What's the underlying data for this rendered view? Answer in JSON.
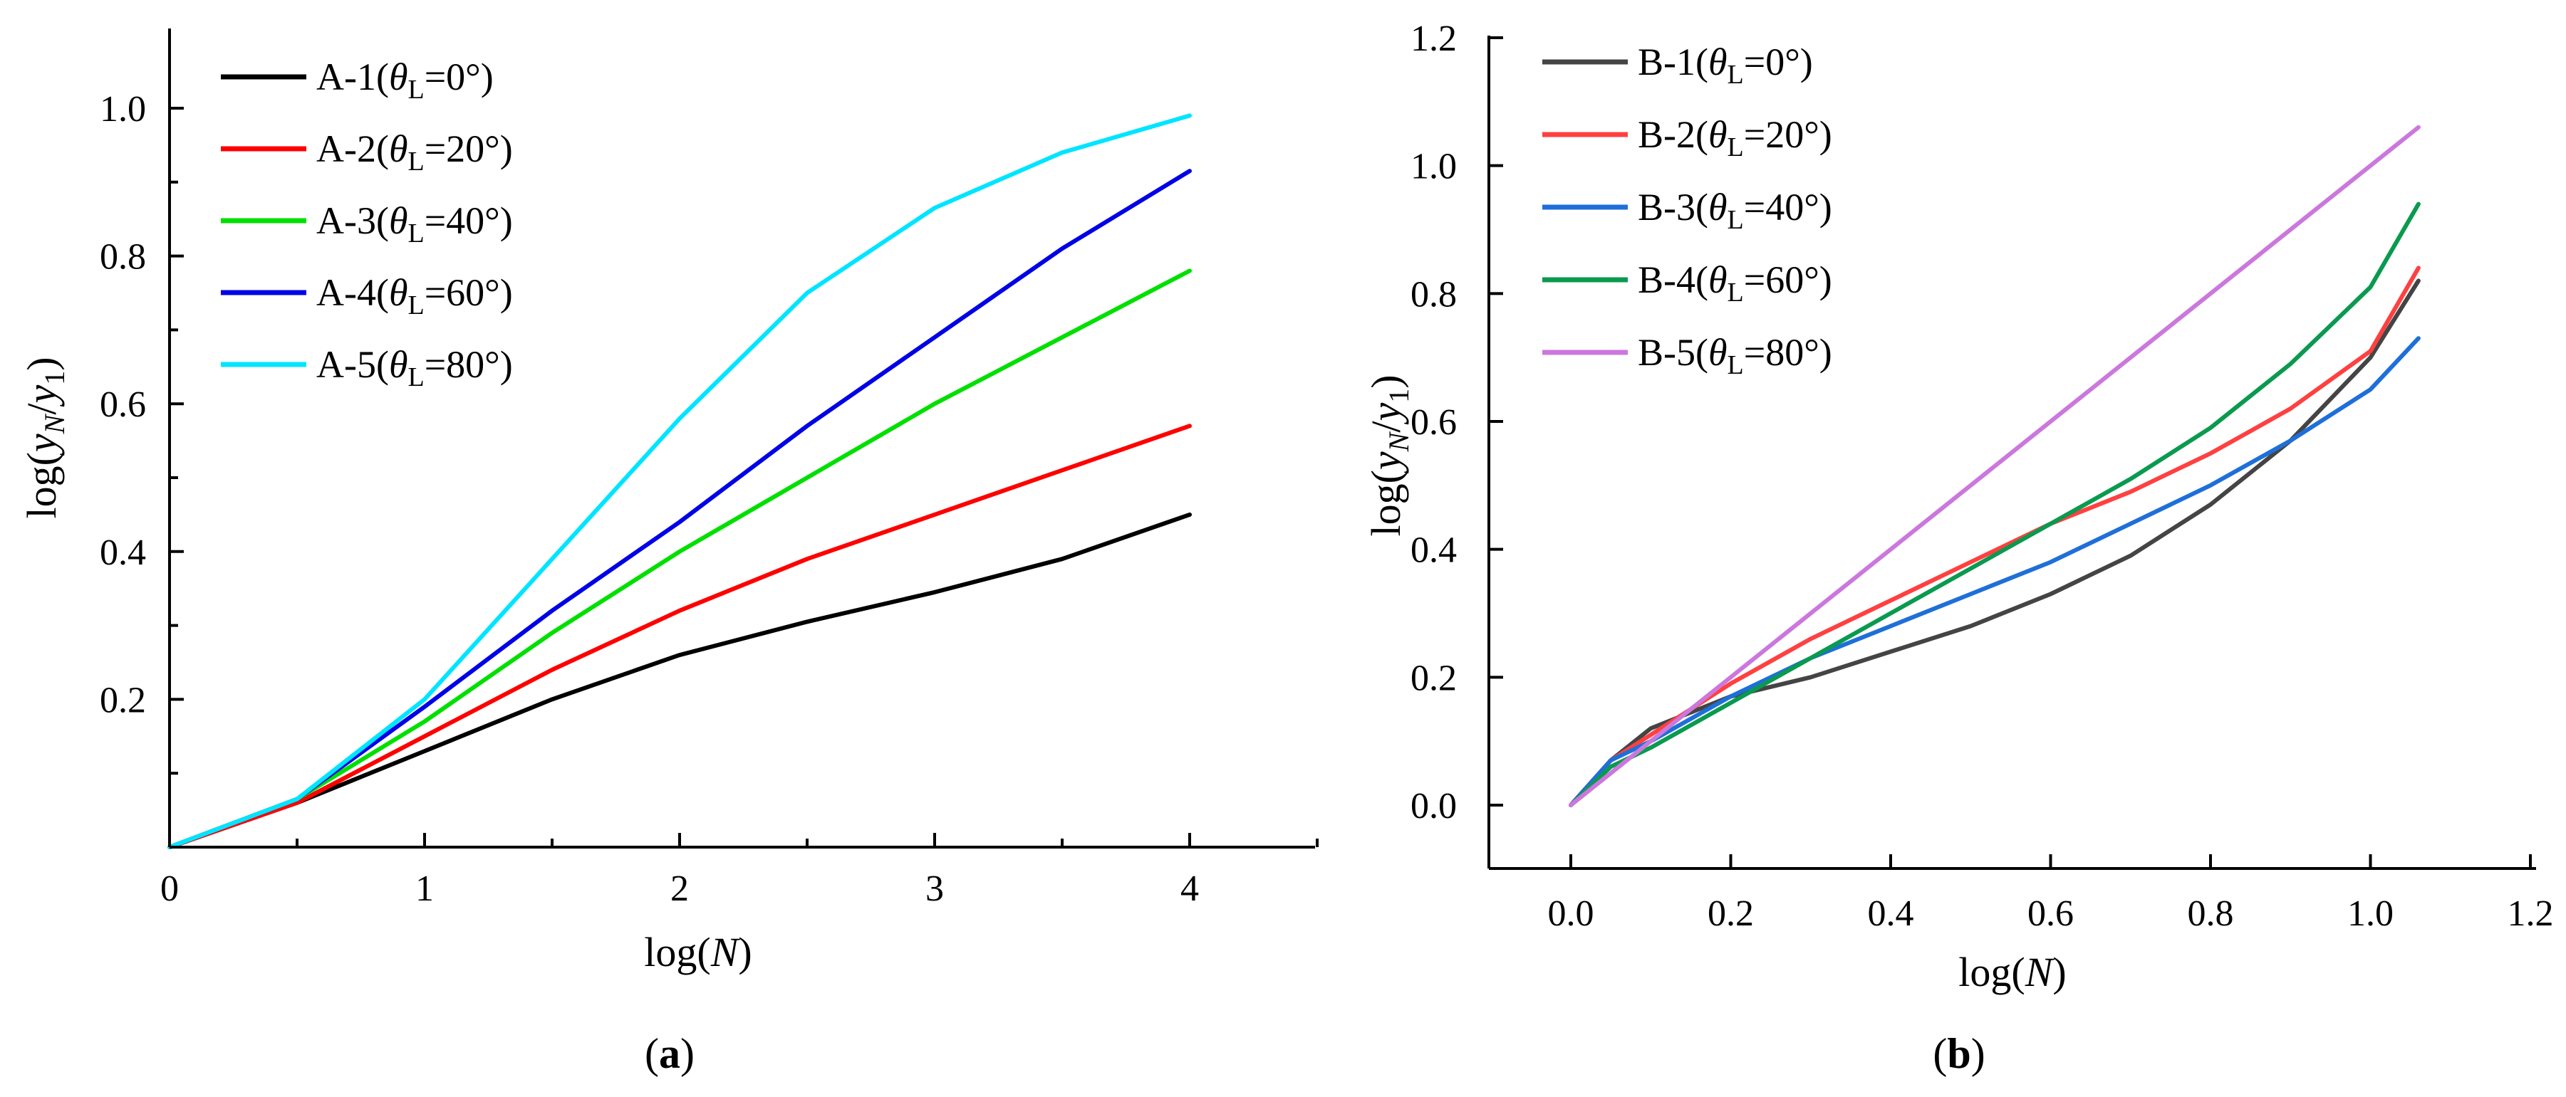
{
  "figure": {
    "panel_labels": [
      "a",
      "b"
    ]
  },
  "chart_data": [
    {
      "type": "line",
      "panel": "a",
      "xlabel": "log(N)",
      "ylabel": "log(y_N/y_1)",
      "xlim": [
        0,
        4.5
      ],
      "ylim": [
        0,
        1.1
      ],
      "xticks": [
        0,
        1,
        2,
        3,
        4
      ],
      "xtick_labels": [
        "0",
        "1",
        "2",
        "3",
        "4"
      ],
      "yticks": [
        0.2,
        0.4,
        0.6,
        0.8,
        1.0
      ],
      "ytick_labels": [
        "0.2",
        "0.4",
        "0.6",
        "0.8",
        "1.0"
      ],
      "legend_position": "top-left",
      "series": [
        {
          "name": "A-1",
          "angle": "0°",
          "color": "#000000",
          "x": [
            0,
            0.5,
            1.0,
            1.5,
            2.0,
            2.5,
            3.0,
            3.5,
            4.0
          ],
          "y": [
            0,
            0.06,
            0.13,
            0.2,
            0.26,
            0.305,
            0.345,
            0.39,
            0.45
          ]
        },
        {
          "name": "A-2",
          "angle": "20°",
          "color": "#ff0000",
          "x": [
            0,
            0.5,
            1.0,
            1.5,
            2.0,
            2.5,
            3.0,
            3.5,
            4.0
          ],
          "y": [
            0,
            0.06,
            0.15,
            0.24,
            0.32,
            0.39,
            0.45,
            0.51,
            0.57
          ]
        },
        {
          "name": "A-3",
          "angle": "40°",
          "color": "#00e000",
          "x": [
            0,
            0.5,
            1.0,
            1.5,
            2.0,
            2.5,
            3.0,
            3.5,
            4.0
          ],
          "y": [
            0,
            0.065,
            0.17,
            0.29,
            0.4,
            0.5,
            0.6,
            0.69,
            0.78
          ]
        },
        {
          "name": "A-4",
          "angle": "60°",
          "color": "#0000e6",
          "x": [
            0,
            0.5,
            1.0,
            1.5,
            2.0,
            2.5,
            3.0,
            3.5,
            4.0
          ],
          "y": [
            0,
            0.065,
            0.19,
            0.32,
            0.44,
            0.57,
            0.69,
            0.81,
            0.915
          ]
        },
        {
          "name": "A-5",
          "angle": "80°",
          "color": "#00e5ff",
          "x": [
            0,
            0.5,
            1.0,
            1.5,
            2.0,
            2.5,
            3.0,
            3.5,
            4.0
          ],
          "y": [
            0,
            0.065,
            0.2,
            0.39,
            0.58,
            0.75,
            0.865,
            0.94,
            0.99
          ]
        }
      ]
    },
    {
      "type": "line",
      "panel": "b",
      "xlabel": "log(N)",
      "ylabel": "log(y_N/y_1)",
      "xlim": [
        -0.1,
        1.2
      ],
      "ylim": [
        -0.1,
        1.2
      ],
      "xticks": [
        0.0,
        0.2,
        0.4,
        0.6,
        0.8,
        1.0,
        1.2
      ],
      "xtick_labels": [
        "0.0",
        "0.2",
        "0.4",
        "0.6",
        "0.8",
        "1.0",
        "1.2"
      ],
      "yticks": [
        0.0,
        0.2,
        0.4,
        0.6,
        0.8,
        1.0,
        1.2
      ],
      "ytick_labels": [
        "0.0",
        "0.2",
        "0.4",
        "0.6",
        "0.8",
        "1.0",
        "1.2"
      ],
      "legend_position": "top-left",
      "series": [
        {
          "name": "B-1",
          "angle": "0°",
          "color": "#444444",
          "x": [
            0,
            0.05,
            0.1,
            0.2,
            0.3,
            0.4,
            0.5,
            0.6,
            0.7,
            0.8,
            0.9,
            1.0,
            1.06
          ],
          "y": [
            0,
            0.07,
            0.12,
            0.17,
            0.2,
            0.24,
            0.28,
            0.33,
            0.39,
            0.47,
            0.57,
            0.7,
            0.82
          ]
        },
        {
          "name": "B-2",
          "angle": "20°",
          "color": "#ff4040",
          "x": [
            0,
            0.05,
            0.1,
            0.2,
            0.3,
            0.4,
            0.5,
            0.6,
            0.7,
            0.8,
            0.9,
            1.0,
            1.06
          ],
          "y": [
            0,
            0.07,
            0.11,
            0.19,
            0.26,
            0.32,
            0.38,
            0.44,
            0.49,
            0.55,
            0.62,
            0.71,
            0.84
          ]
        },
        {
          "name": "B-3",
          "angle": "40°",
          "color": "#1e6fd9",
          "x": [
            0,
            0.05,
            0.1,
            0.2,
            0.3,
            0.4,
            0.5,
            0.6,
            0.7,
            0.8,
            0.9,
            1.0,
            1.06
          ],
          "y": [
            0,
            0.07,
            0.1,
            0.17,
            0.23,
            0.28,
            0.33,
            0.38,
            0.44,
            0.5,
            0.57,
            0.65,
            0.73
          ]
        },
        {
          "name": "B-4",
          "angle": "60°",
          "color": "#0a9a4f",
          "x": [
            0,
            0.05,
            0.1,
            0.2,
            0.3,
            0.4,
            0.5,
            0.6,
            0.7,
            0.8,
            0.9,
            1.0,
            1.06
          ],
          "y": [
            0,
            0.06,
            0.09,
            0.16,
            0.23,
            0.3,
            0.37,
            0.44,
            0.51,
            0.59,
            0.69,
            0.81,
            0.94
          ]
        },
        {
          "name": "B-5",
          "angle": "80°",
          "color": "#cc77dd",
          "x": [
            0,
            1.06
          ],
          "y": [
            0,
            1.06
          ]
        }
      ]
    }
  ]
}
